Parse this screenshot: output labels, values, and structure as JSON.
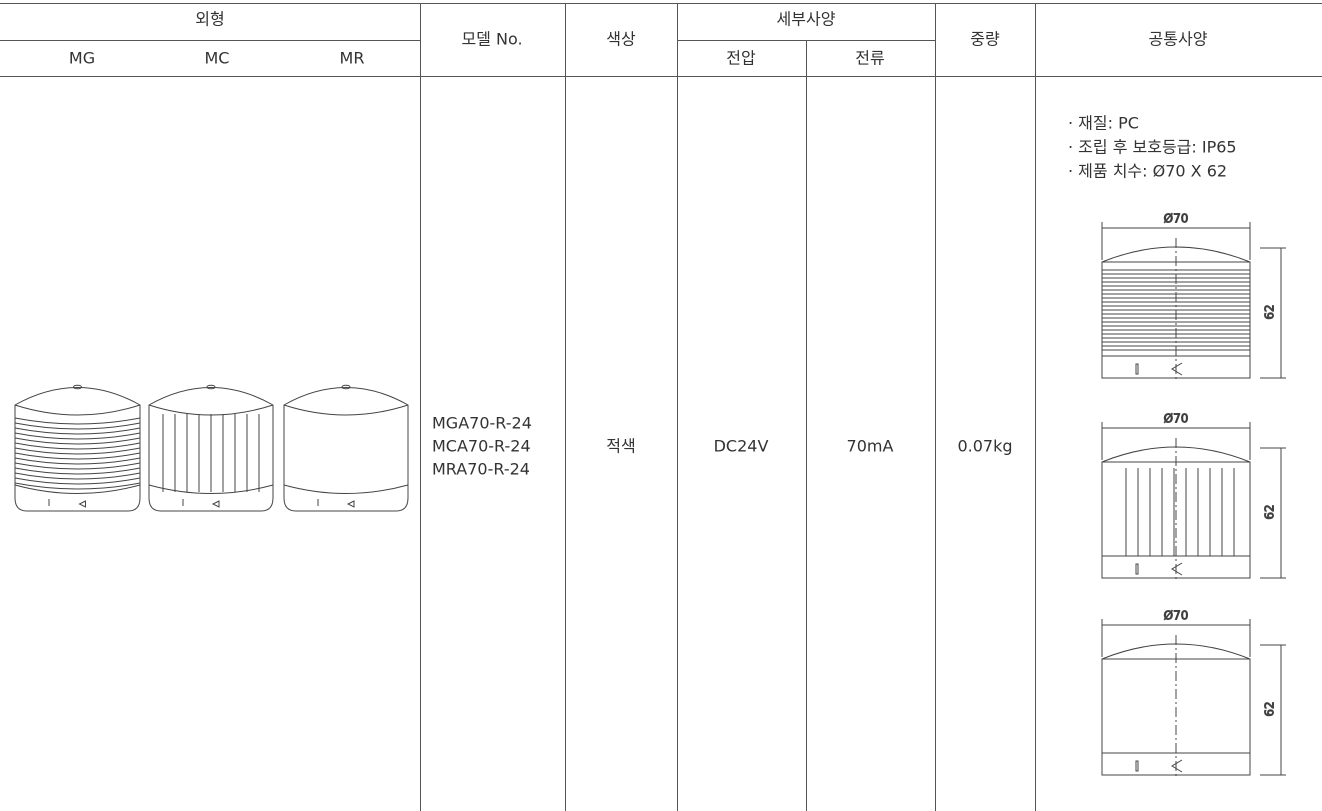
{
  "table": {
    "header": {
      "appearance": "외형",
      "model": "모델 No.",
      "color": "색상",
      "detail": "세부사양",
      "weight": "중량",
      "common": "공통사양",
      "appearance_sub": [
        "MG",
        "MC",
        "MR"
      ],
      "detail_sub": [
        "전압",
        "전류"
      ]
    },
    "row": {
      "models": [
        "MGA70-R-24",
        "MCA70-R-24",
        "MRA70-R-24"
      ],
      "color": "적색",
      "voltage": "DC24V",
      "current": "70mA",
      "weight": "0.07kg",
      "common_specs": [
        "· 재질: PC",
        "· 조립 후 보호등급: IP65",
        "· 제품 치수: Ø70 X 62"
      ],
      "drawings": [
        {
          "diameter": "Ø70",
          "height": "62"
        },
        {
          "diameter": "Ø70",
          "height": "62"
        },
        {
          "diameter": "Ø70",
          "height": "62"
        }
      ]
    }
  }
}
